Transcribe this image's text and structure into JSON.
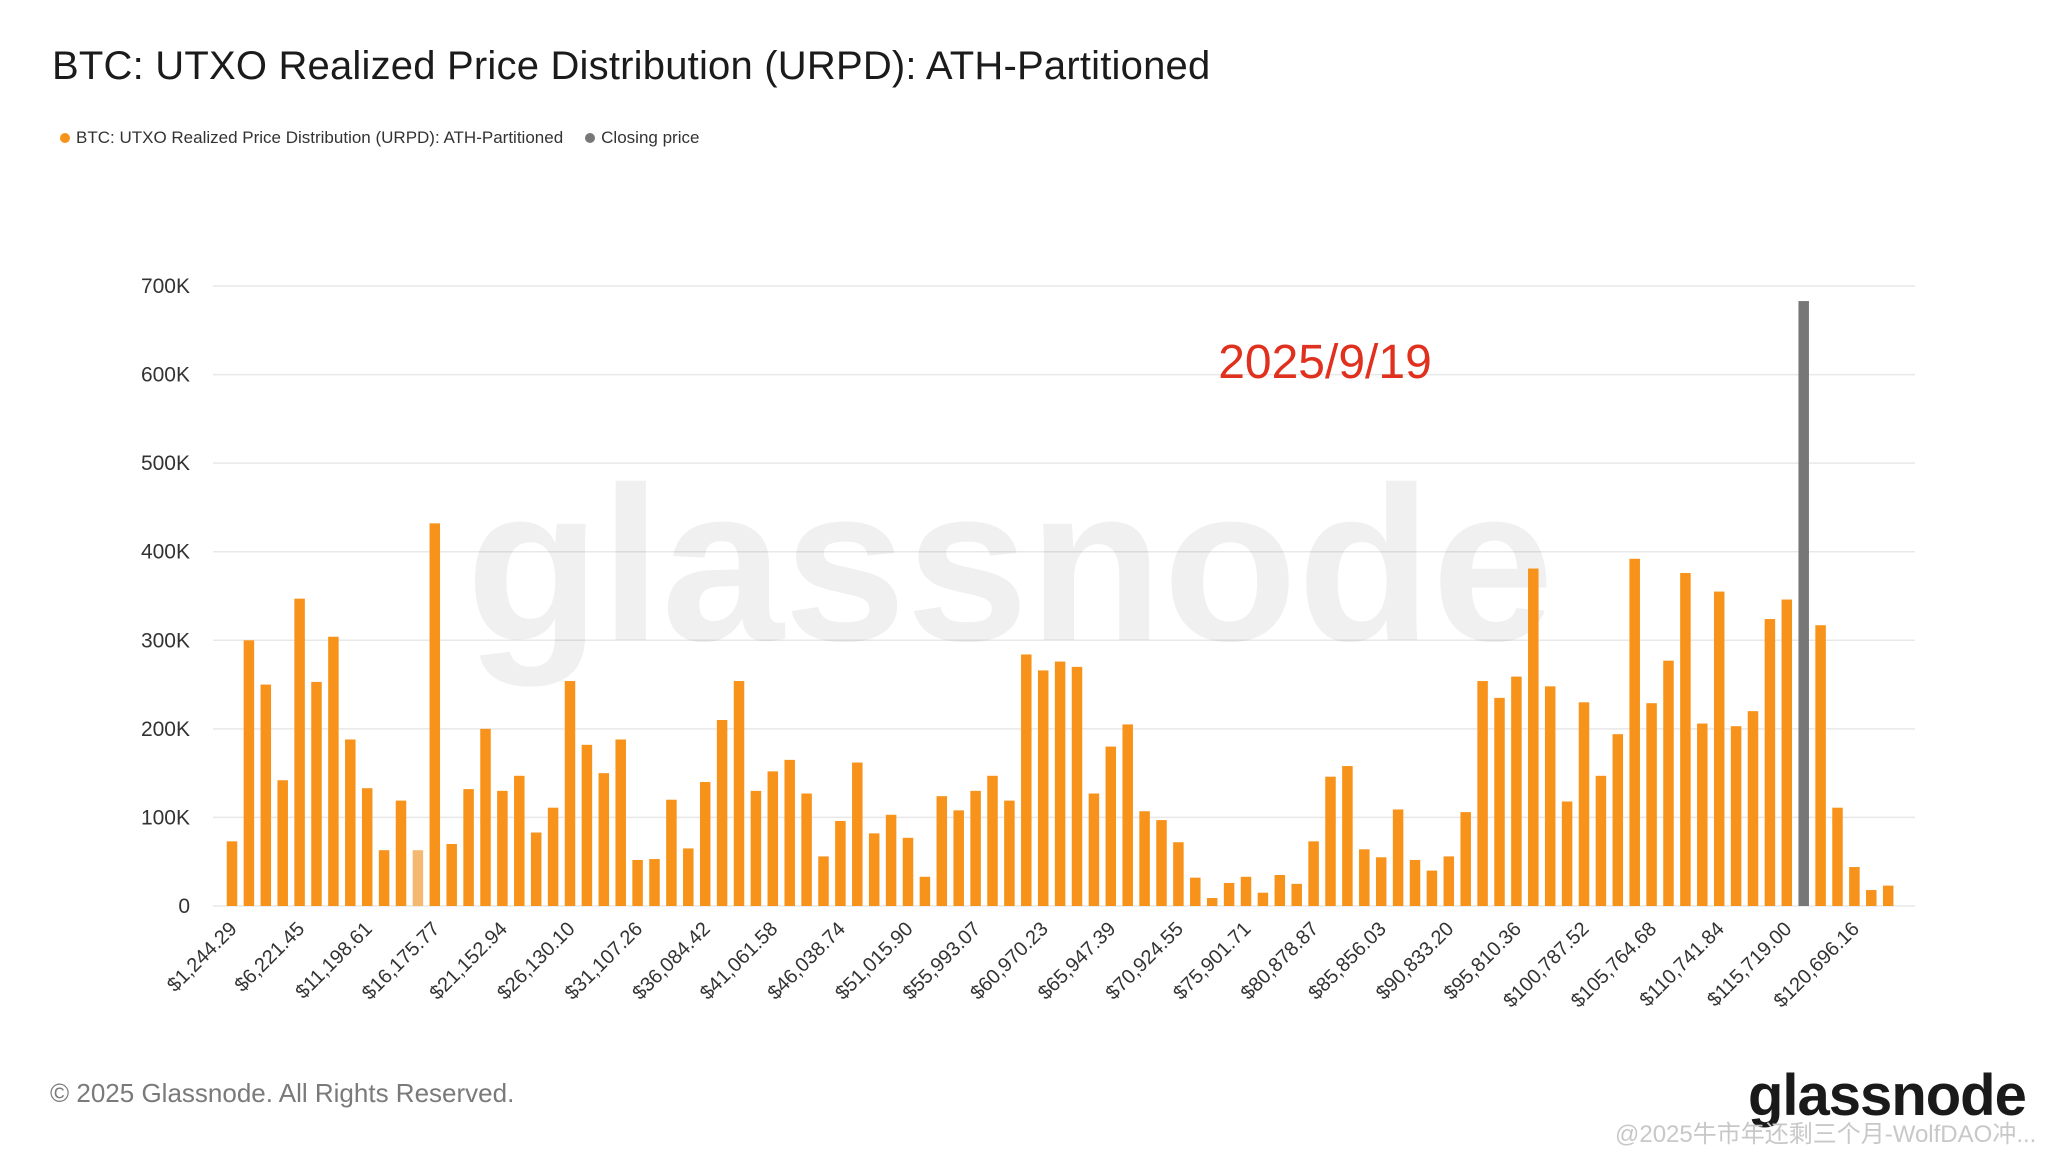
{
  "title": "BTC: UTXO Realized Price Distribution (URPD): ATH-Partitioned",
  "legend": {
    "urpd_label": "BTC: UTXO Realized Price Distribution (URPD): ATH-Partitioned",
    "urpd_color": "#f7931a",
    "close_label": "Closing price",
    "close_color": "#777777"
  },
  "annotation": {
    "text": "2025/9/19",
    "color": "#e0301e"
  },
  "watermark": "glassnode",
  "footer": "© 2025 Glassnode. All Rights Reserved.",
  "brand": "glassnode",
  "repost_text": "@2025牛市年还剩三个月-WolfDAO冲...",
  "chart_data": {
    "type": "bar",
    "ylim": [
      0,
      700000
    ],
    "y_ticks": [
      "0",
      "100K",
      "200K",
      "300K",
      "400K",
      "500K",
      "600K",
      "700K"
    ],
    "x_tick_labels": [
      "$1,244.29",
      "$6,221.45",
      "$11,198.61",
      "$16,175.77",
      "$21,152.94",
      "$26,130.10",
      "$31,107.26",
      "$36,084.42",
      "$41,061.58",
      "$46,038.74",
      "$51,015.90",
      "$55,993.07",
      "$60,970.23",
      "$65,947.39",
      "$70,924.55",
      "$75,901.71",
      "$80,878.87",
      "$85,856.03",
      "$90,833.20",
      "$95,810.36",
      "$100,787.52",
      "$105,764.68",
      "$110,741.84",
      "$115,719.00",
      "$120,696.16"
    ],
    "series": [
      {
        "name": "BTC: UTXO Realized Price Distribution (URPD): ATH-Partitioned",
        "values": [
          73000,
          300000,
          250000,
          142000,
          347000,
          253000,
          304000,
          188000,
          133000,
          63000,
          119000,
          63000,
          432000,
          70000,
          132000,
          200000,
          130000,
          147000,
          83000,
          111000,
          254000,
          182000,
          150000,
          188000,
          52000,
          53000,
          120000,
          65000,
          140000,
          210000,
          254000,
          130000,
          152000,
          165000,
          127000,
          56000,
          96000,
          162000,
          82000,
          103000,
          77000,
          33000,
          124000,
          108000,
          130000,
          147000,
          119000,
          284000,
          266000,
          276000,
          270000,
          127000,
          180000,
          205000,
          107000,
          97000,
          72000,
          32000,
          9000,
          26000,
          33000,
          15000,
          35000,
          25000,
          73000,
          146000,
          158000,
          64000,
          55000,
          109000,
          52000,
          40000,
          56000,
          106000,
          254000,
          235000,
          259000,
          381000,
          248000,
          118000,
          230000,
          147000,
          194000,
          392000,
          229000,
          277000,
          376000,
          206000,
          355000,
          203000,
          220000,
          324000,
          346000,
          0,
          317000,
          111000,
          44000,
          18000,
          23000
        ]
      },
      {
        "name": "Closing price",
        "bar_index": 93,
        "value": 683000
      }
    ],
    "highlighted_bar_index": 11,
    "grid": true
  }
}
